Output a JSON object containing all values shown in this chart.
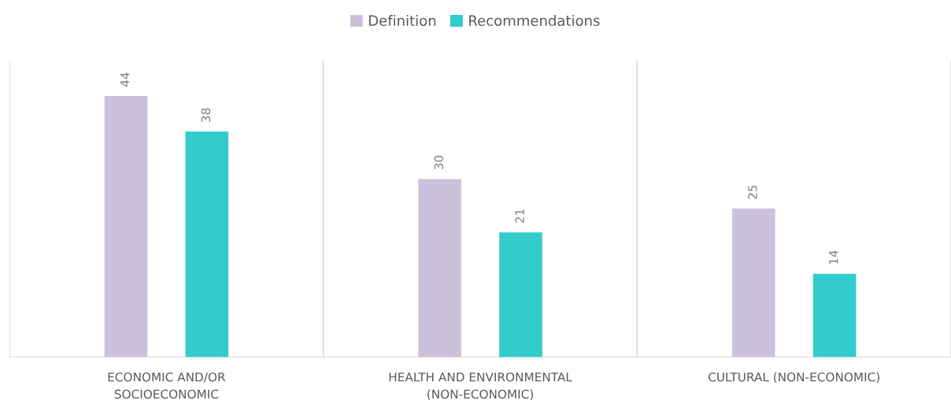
{
  "chart_data": {
    "type": "bar",
    "categories": [
      "ECONOMIC AND/OR\nSOCIOECONOMIC",
      "HEALTH AND ENVIRONMENTAL\n(NON-ECONOMIC)",
      "CULTURAL (NON-ECONOMIC)"
    ],
    "series": [
      {
        "name": "Definition",
        "color": "#cbc1db",
        "values": [
          44,
          30,
          25
        ]
      },
      {
        "name": "Recommendations",
        "color": "#33cccc",
        "values": [
          38,
          21,
          14
        ]
      }
    ],
    "ylim": [
      0,
      50
    ],
    "tick_labels": "x",
    "data_labels": true,
    "grid": "x",
    "legend": "top"
  }
}
